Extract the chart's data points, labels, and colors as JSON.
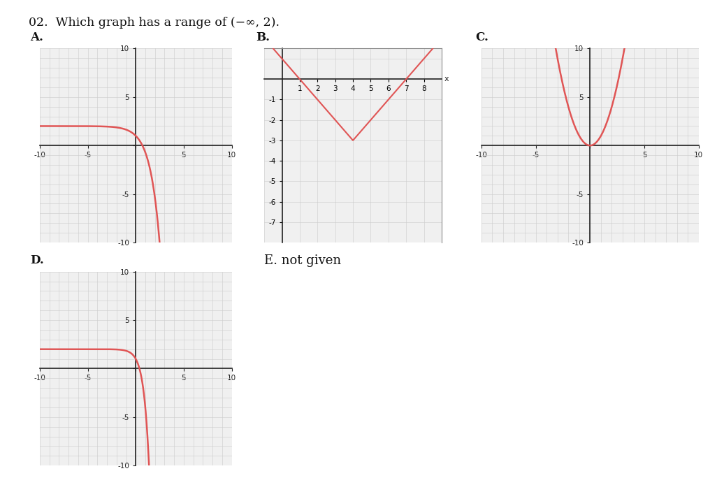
{
  "curve_color": "#e05555",
  "grid_color": "#cccccc",
  "axis_color": "#222222",
  "background": "#ffffff",
  "label_A": "A.",
  "label_B": "B.",
  "label_C": "C.",
  "label_D": "D.",
  "label_E": "E. not given",
  "title": "02.  Which graph has a range of (−∞, 2)."
}
